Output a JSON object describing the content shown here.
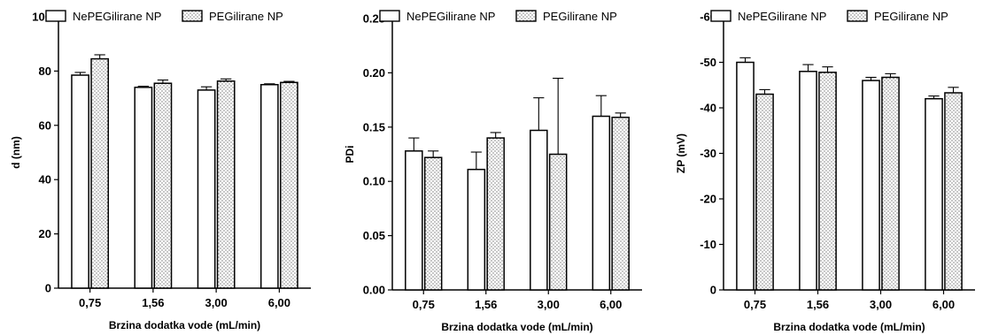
{
  "chart_data": [
    {
      "type": "bar",
      "categories": [
        "0,75",
        "1,56",
        "3,00",
        "6,00"
      ],
      "series": [
        {
          "name": "NePEGilirane NP",
          "pattern": "open",
          "values": [
            78.5,
            74.0,
            73.0,
            75.0
          ],
          "errors": [
            1.0,
            0.4,
            1.2,
            0.3
          ]
        },
        {
          "name": "PEGilirane NP",
          "pattern": "dotted",
          "values": [
            84.5,
            75.5,
            76.3,
            75.8
          ],
          "errors": [
            1.5,
            1.2,
            0.8,
            0.4
          ]
        }
      ],
      "xlabel": "Brzina dodatka vode (mL/min)",
      "ylabel": "d (nm)",
      "ylim": [
        0,
        100
      ],
      "yticks": [
        0,
        20,
        40,
        60,
        80,
        100
      ],
      "ytick_labels": [
        "0",
        "20",
        "40",
        "60",
        "80",
        "100"
      ],
      "legend_position": "top"
    },
    {
      "type": "bar",
      "categories": [
        "0,75",
        "1,56",
        "3,00",
        "6,00"
      ],
      "series": [
        {
          "name": "NePEGilirane NP",
          "pattern": "open",
          "values": [
            0.128,
            0.111,
            0.147,
            0.16
          ],
          "errors": [
            0.012,
            0.016,
            0.03,
            0.019
          ]
        },
        {
          "name": "PEGilirane NP",
          "pattern": "dotted",
          "values": [
            0.122,
            0.14,
            0.125,
            0.159
          ],
          "errors": [
            0.006,
            0.005,
            0.07,
            0.004
          ]
        }
      ],
      "xlabel": "Brzina dodatka vode (mL/min)",
      "ylabel": "PDi",
      "ylim": [
        0,
        0.25
      ],
      "yticks": [
        0,
        0.05,
        0.1,
        0.15,
        0.2,
        0.25
      ],
      "ytick_labels": [
        "0.00",
        "0.05",
        "0.10",
        "0.15",
        "0.20",
        "0.25"
      ],
      "legend_position": "top"
    },
    {
      "type": "bar",
      "categories": [
        "0,75",
        "1,56",
        "3,00",
        "6,00"
      ],
      "series": [
        {
          "name": "NePEGilirane NP",
          "pattern": "open",
          "values": [
            -50.0,
            -48.0,
            -46.0,
            -42.0
          ],
          "errors": [
            1.0,
            1.5,
            0.7,
            0.6
          ]
        },
        {
          "name": "PEGilirane NP",
          "pattern": "dotted",
          "values": [
            -43.0,
            -47.8,
            -46.7,
            -43.3
          ],
          "errors": [
            1.0,
            1.2,
            0.8,
            1.2
          ]
        }
      ],
      "xlabel": "Brzina dodatka vode (mL/min)",
      "ylabel": "ZP (mV)",
      "ylim": [
        0,
        -60
      ],
      "inverted_y": true,
      "yticks": [
        0,
        -10,
        -20,
        -30,
        -40,
        -50,
        -60
      ],
      "ytick_labels": [
        "0",
        "-10",
        "-20",
        "-30",
        "-40",
        "-50",
        "-60"
      ],
      "legend_position": "top"
    }
  ],
  "colors": {
    "bar_edge": "#000000",
    "bar_fill": "#ffffff",
    "dot": "#555555"
  }
}
